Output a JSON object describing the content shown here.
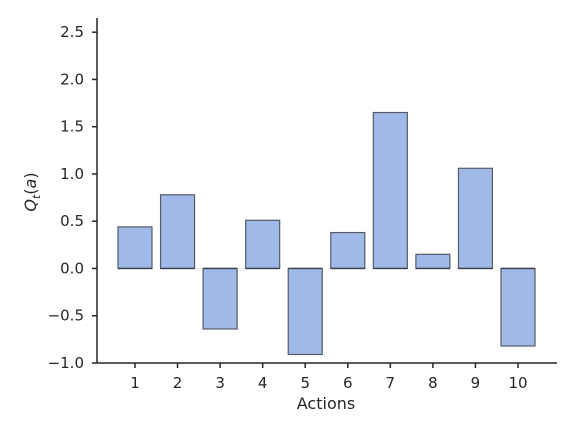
{
  "chart_data": {
    "type": "bar",
    "categories": [
      "1",
      "2",
      "3",
      "4",
      "5",
      "6",
      "7",
      "8",
      "9",
      "10"
    ],
    "values": [
      0.44,
      0.78,
      -0.64,
      0.51,
      -0.91,
      0.38,
      1.65,
      0.15,
      1.06,
      -0.82
    ],
    "xlabel": "Actions",
    "ylabel": "Q_t(a)",
    "ylim": [
      -1.0,
      2.65
    ],
    "yticks": [
      -1.0,
      -0.5,
      0.0,
      0.5,
      1.0,
      1.5,
      2.0,
      2.5
    ],
    "ytick_labels": [
      "−1.0",
      "−0.5",
      "0.0",
      "0.5",
      "1.0",
      "1.5",
      "2.0",
      "2.5"
    ],
    "bar_color": "#a1b9e8",
    "edge_color": "#555b66",
    "grid": false
  }
}
